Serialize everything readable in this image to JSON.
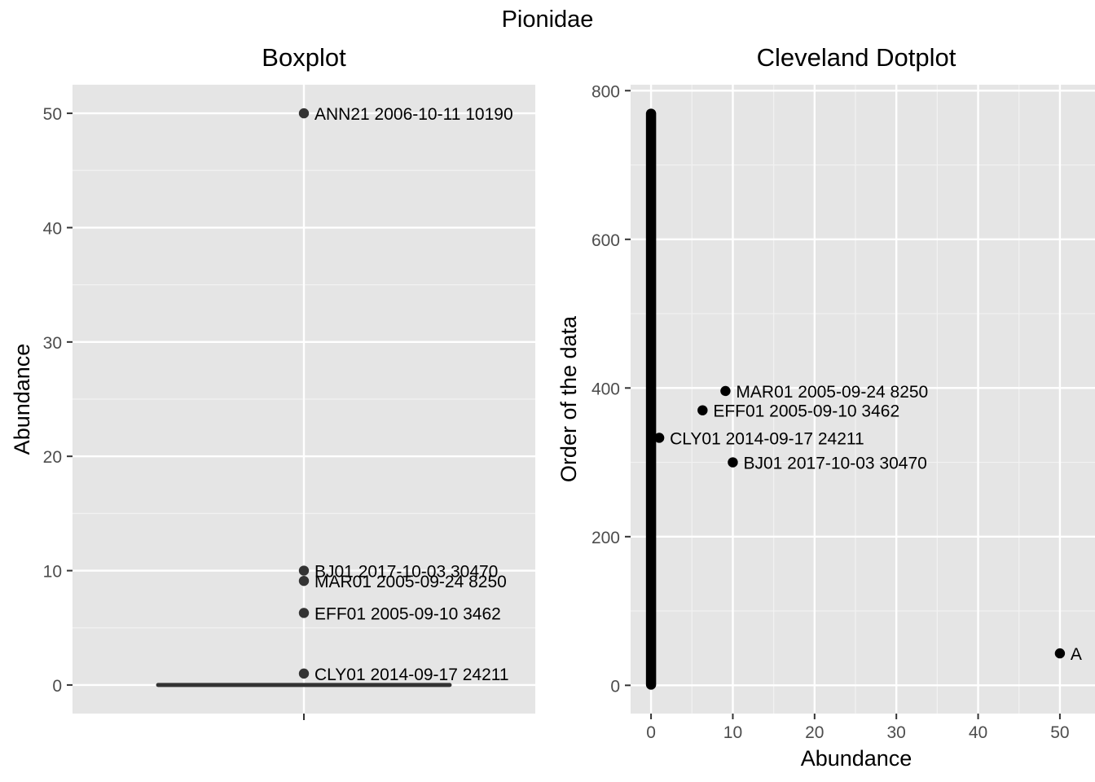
{
  "figure": {
    "title": "Pionidae"
  },
  "chart_data": [
    {
      "type": "box",
      "title": "Boxplot",
      "xlabel": "",
      "ylabel": "Abundance",
      "ylim": [
        -2.5,
        52.5
      ],
      "yticks": [
        0,
        10,
        20,
        30,
        40,
        50
      ],
      "grid": true,
      "box": {
        "min": 0,
        "q1": 0,
        "median": 0,
        "q3": 0,
        "max": 0
      },
      "outliers": [
        {
          "value": 50,
          "label": "ANN21 2006-10-11 10190"
        },
        {
          "value": 10,
          "label": "BJ01 2017-10-03 30470"
        },
        {
          "value": 9.1,
          "label": "MAR01 2005-09-24 8250"
        },
        {
          "value": 6.3,
          "label": "EFF01 2005-09-10 3462"
        },
        {
          "value": 1,
          "label": "CLY01 2014-09-17 24211"
        }
      ]
    },
    {
      "type": "scatter",
      "title": "Cleveland Dotplot",
      "xlabel": "Abundance",
      "ylabel": "Order of the data",
      "xlim": [
        -2.5,
        52.5
      ],
      "ylim": [
        -38,
        808
      ],
      "xticks": [
        0,
        10,
        20,
        30,
        40,
        50
      ],
      "yticks": [
        0,
        200,
        400,
        600,
        800
      ],
      "grid": true,
      "zero_run": {
        "x": 0,
        "y_from": 1,
        "y_to": 769
      },
      "points": [
        {
          "x": 9.1,
          "y": 396,
          "label": "MAR01 2005-09-24 8250"
        },
        {
          "x": 6.3,
          "y": 370,
          "label": "EFF01 2005-09-10 3462"
        },
        {
          "x": 1,
          "y": 333,
          "label": "CLY01 2014-09-17 24211"
        },
        {
          "x": 10,
          "y": 300,
          "label": "BJ01 2017-10-03 30470"
        },
        {
          "x": 50,
          "y": 43,
          "label": "A"
        }
      ]
    }
  ]
}
